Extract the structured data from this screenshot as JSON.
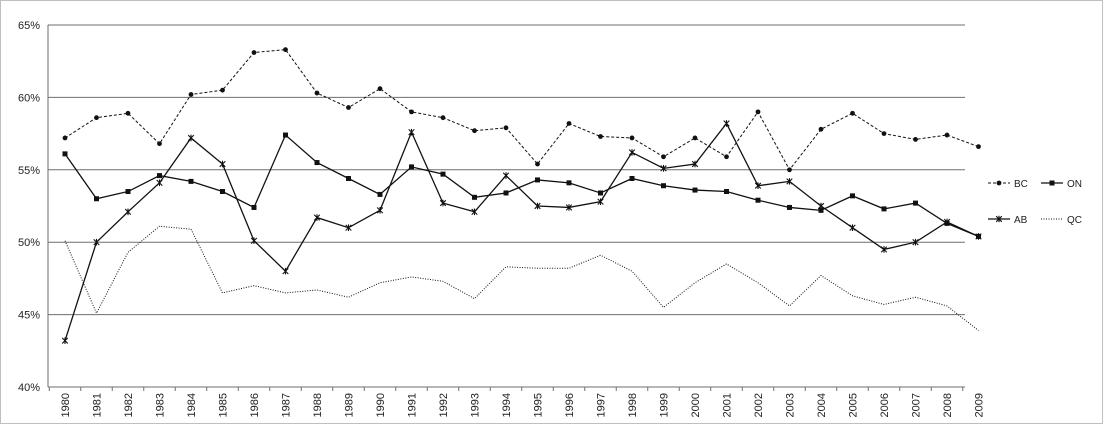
{
  "chart_data": {
    "type": "line",
    "title": "",
    "xlabel": "",
    "ylabel": "",
    "ylim": [
      0.4,
      0.65
    ],
    "y_ticks": [
      "40%",
      "45%",
      "50%",
      "55%",
      "60%",
      "65%"
    ],
    "grid": "horizontal",
    "legend_position": "right",
    "categories": [
      "1980",
      "1981",
      "1982",
      "1983",
      "1984",
      "1985",
      "1986",
      "1987",
      "1988",
      "1989",
      "1990",
      "1991",
      "1992",
      "1993",
      "1994",
      "1995",
      "1996",
      "1997",
      "1998",
      "1999",
      "2000",
      "2001",
      "2002",
      "2003",
      "2004",
      "2005",
      "2006",
      "2007",
      "2008",
      "2009"
    ],
    "series": [
      {
        "name": "BC",
        "style": "dashed",
        "marker": "circle",
        "values": [
          0.572,
          0.586,
          0.589,
          0.568,
          0.602,
          0.605,
          0.631,
          0.633,
          0.603,
          0.593,
          0.606,
          0.59,
          0.586,
          0.577,
          0.579,
          0.554,
          0.582,
          0.573,
          0.572,
          0.559,
          0.572,
          0.559,
          0.59,
          0.55,
          0.578,
          0.589,
          0.575,
          0.571,
          0.574,
          0.566
        ]
      },
      {
        "name": "ON",
        "style": "solid",
        "marker": "square",
        "values": [
          0.561,
          0.53,
          0.535,
          0.546,
          0.542,
          0.535,
          0.524,
          0.574,
          0.555,
          0.544,
          0.533,
          0.552,
          0.547,
          0.531,
          0.534,
          0.543,
          0.541,
          0.534,
          0.544,
          0.539,
          0.536,
          0.535,
          0.529,
          0.524,
          0.522,
          0.532,
          0.523,
          0.527,
          0.513,
          0.504
        ]
      },
      {
        "name": "AB",
        "style": "solid",
        "marker": "star",
        "values": [
          0.432,
          0.5,
          0.521,
          0.541,
          0.572,
          0.554,
          0.501,
          0.48,
          0.517,
          0.51,
          0.522,
          0.576,
          0.527,
          0.521,
          0.546,
          0.525,
          0.524,
          0.528,
          0.562,
          0.551,
          0.554,
          0.582,
          0.539,
          0.542,
          0.525,
          0.51,
          0.495,
          0.5,
          0.514,
          0.504
        ]
      },
      {
        "name": "QC",
        "style": "dotted",
        "marker": "none",
        "values": [
          0.501,
          0.451,
          0.493,
          0.511,
          0.509,
          0.465,
          0.47,
          0.465,
          0.467,
          0.462,
          0.472,
          0.476,
          0.473,
          0.461,
          0.483,
          0.482,
          0.482,
          0.491,
          0.48,
          0.455,
          0.472,
          0.485,
          0.472,
          0.456,
          0.477,
          0.463,
          0.457,
          0.462,
          0.456,
          0.439
        ]
      }
    ]
  }
}
